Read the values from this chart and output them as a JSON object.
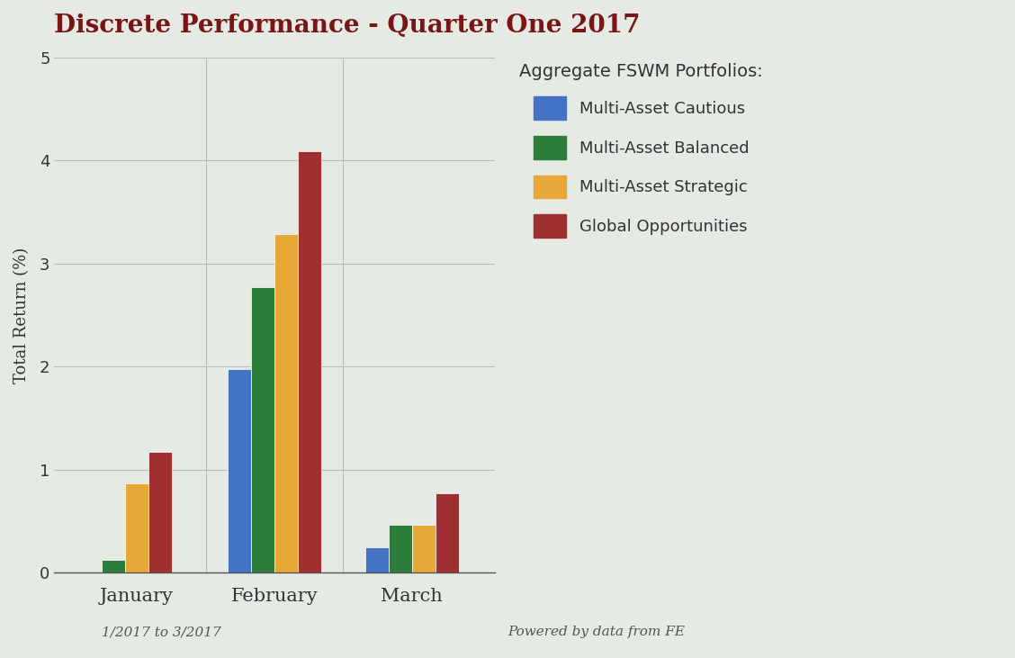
{
  "title": "Discrete Performance - Quarter One 2017",
  "ylabel": "Total Return (%)",
  "background_color": "#e5eae5",
  "plot_background_color": "#e5eae5",
  "title_color": "#7a1515",
  "categories": [
    "January",
    "February",
    "March"
  ],
  "series": [
    {
      "label": "Multi-Asset Cautious",
      "color": "#4472c4",
      "values": [
        null,
        1.98,
        0.25
      ]
    },
    {
      "label": "Multi-Asset Balanced",
      "color": "#2d7d3a",
      "values": [
        0.13,
        2.77,
        0.47
      ]
    },
    {
      "label": "Multi-Asset Strategic",
      "color": "#e8a838",
      "values": [
        0.87,
        3.29,
        0.47
      ]
    },
    {
      "label": "Global Opportunities",
      "color": "#a03030",
      "values": [
        1.17,
        4.09,
        0.77
      ]
    }
  ],
  "legend_title": "Aggregate FSWM Portfolios:",
  "legend_title_color": "#333333",
  "legend_text_color": "#333333",
  "ylim": [
    0,
    5
  ],
  "yticks": [
    0,
    1,
    2,
    3,
    4,
    5
  ],
  "bar_width": 0.17,
  "footnote_left": "1/2017 to 3/2017",
  "footnote_right": "Powered by data from FE",
  "footnote_color": "#555555",
  "axis_line_color": "#888888",
  "grid_color": "#bbbbbb",
  "tick_label_color": "#333333"
}
